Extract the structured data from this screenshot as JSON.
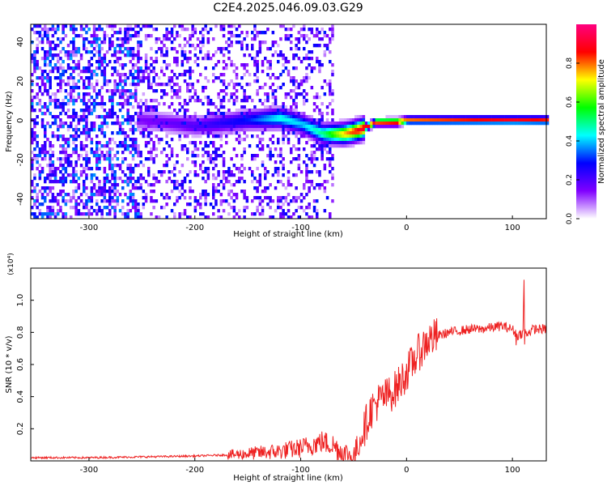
{
  "title": "C2E4.2025.046.09.03.G29",
  "chart_data": [
    {
      "type": "heatmap",
      "xlabel": "Height of straight line (km)",
      "ylabel": "Frequency (Hz)",
      "xlim": [
        -355,
        132
      ],
      "ylim": [
        -50,
        49
      ],
      "xticks": [
        -300,
        -200,
        -100,
        0,
        100
      ],
      "yticks": [
        -40,
        -20,
        0,
        20,
        40
      ],
      "colorbar": {
        "label": "Normalized spectral amplitude",
        "range": [
          0,
          1
        ],
        "ticks": [
          0.0,
          0.2,
          0.4,
          0.6,
          0.8
        ],
        "colormap": [
          "#ffffff",
          "#8000ff",
          "#0000ff",
          "#00ffff",
          "#00ff00",
          "#ffff00",
          "#ff0000",
          "#ff0080"
        ]
      },
      "ridge": {
        "description_points_x": [
          -250,
          -200,
          -150,
          -120,
          -100,
          -80,
          -60,
          -45,
          -30,
          -10,
          0,
          50,
          100,
          132
        ],
        "freq_hz": [
          1,
          -2,
          1,
          2,
          -1,
          -6,
          -6,
          -4,
          0,
          0,
          1,
          1,
          1,
          1
        ],
        "amplitude": [
          0.15,
          0.2,
          0.3,
          0.45,
          0.4,
          0.5,
          0.75,
          0.9,
          0.9,
          0.95,
          0.8,
          0.85,
          0.9,
          0.85
        ]
      }
    },
    {
      "type": "line",
      "xlabel": "Height of straight line (km)",
      "ylabel": "SNR (10 * v/v)",
      "yscale_label": "(x10⁴)",
      "xlim": [
        -355,
        132
      ],
      "ylim": [
        0,
        1.2
      ],
      "xticks": [
        -300,
        -200,
        -100,
        0,
        100
      ],
      "yticks": [
        0.2,
        0.4,
        0.6,
        0.8,
        1.0
      ],
      "series": [
        {
          "color": "#ee2222",
          "x": [
            -355,
            -300,
            -250,
            -200,
            -160,
            -140,
            -120,
            -100,
            -90,
            -80,
            -70,
            -60,
            -50,
            -40,
            -35,
            -30,
            -25,
            -20,
            -15,
            -10,
            -5,
            0,
            10,
            20,
            30,
            40,
            50,
            60,
            70,
            80,
            90,
            100,
            105,
            110,
            115,
            120,
            132
          ],
          "y": [
            0.02,
            0.02,
            0.025,
            0.03,
            0.04,
            0.05,
            0.06,
            0.08,
            0.1,
            0.12,
            0.1,
            0.05,
            0.02,
            0.2,
            0.3,
            0.35,
            0.38,
            0.4,
            0.42,
            0.45,
            0.5,
            0.55,
            0.66,
            0.75,
            0.78,
            0.8,
            0.81,
            0.82,
            0.82,
            0.83,
            0.84,
            0.82,
            0.78,
            0.8,
            0.8,
            0.82,
            0.82
          ]
        }
      ]
    }
  ]
}
